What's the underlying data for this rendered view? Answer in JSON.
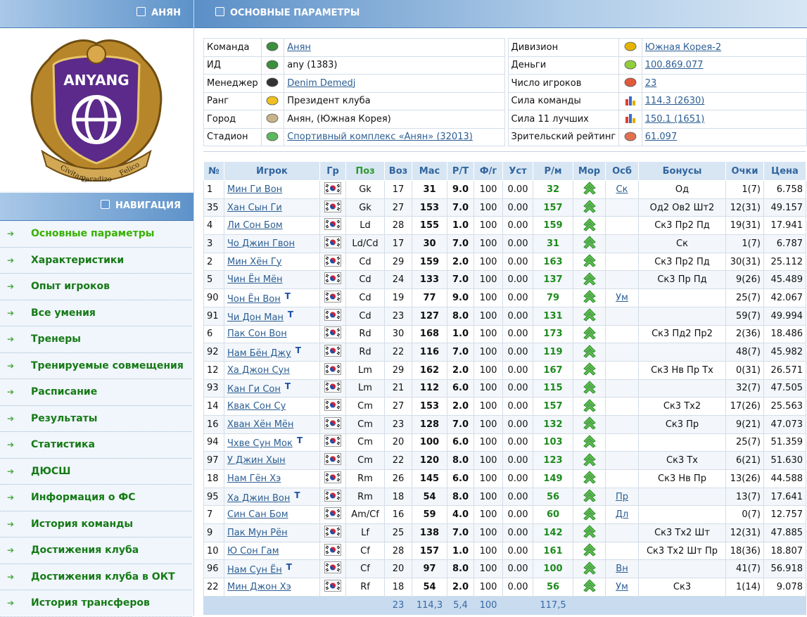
{
  "sidebar": {
    "team_title": "АНЯН",
    "logo": {
      "name": "ANYANG",
      "motto": [
        "Civitano",
        "Paradizo",
        "Felico"
      ]
    },
    "nav_title": "НАВИГАЦИЯ",
    "nav": [
      "Основные параметры",
      "Характеристики",
      "Опыт игроков",
      "Все умения",
      "Тренеры",
      "Тренируемые совмещения",
      "Расписание",
      "Результаты",
      "Статистика",
      "ДЮСШ",
      "Информация о ФС",
      "История команды",
      "Достижения клуба",
      "Достижения клуба в ОКТ",
      "История трансферов"
    ],
    "active": 0
  },
  "header": {
    "title": "ОСНОВНЫЕ ПАРАМЕТРЫ"
  },
  "info": {
    "left": [
      {
        "label": "Команда",
        "value": "Анян",
        "link": true
      },
      {
        "label": "ИД",
        "value": "any (1383)",
        "link": false
      },
      {
        "label": "Менеджер",
        "value": "Denim Demedj",
        "link": true
      },
      {
        "label": "Ранг",
        "value": "Президент клуба",
        "link": false
      },
      {
        "label": "Город",
        "value": "Анян, (Южная Корея)",
        "link": false
      },
      {
        "label": "Стадион",
        "value": "Спортивный комплекс «Анян» (32013)",
        "link": true
      }
    ],
    "right": [
      {
        "label": "Дивизион",
        "value": "Южная Корея-2",
        "link": true
      },
      {
        "label": "Деньги",
        "value": "100.869.077",
        "link": true
      },
      {
        "label": "Число игроков",
        "value": "23",
        "link": true
      },
      {
        "label": "Сила команды",
        "value": "114.3 (2630)",
        "link": true
      },
      {
        "label": "Сила 11 лучших",
        "value": "150.1 (1651)",
        "link": true
      },
      {
        "label": "Зрительский рейтинг",
        "value": "61.097",
        "link": true
      }
    ]
  },
  "players": {
    "columns": [
      "№",
      "Игрок",
      "Гр",
      "Поз",
      "Воз",
      "Мас",
      "Р/Т",
      "Ф/г",
      "Уст",
      "Р/м",
      "Мор",
      "Осб",
      "Бонусы",
      "Очки",
      "Цена"
    ],
    "rows": [
      {
        "num": "1",
        "name": "Мин Ги Вон",
        "pos": "Gk",
        "age": "17",
        "mas": "31",
        "rt": "9.0",
        "fg": "100",
        "ust": "0.00",
        "rm": "32",
        "osb": "Ск",
        "bonus": "Од",
        "pts": "1(7)",
        "price": "6.758"
      },
      {
        "num": "35",
        "name": "Хан Сын Ги",
        "pos": "Gk",
        "age": "27",
        "mas": "153",
        "rt": "7.0",
        "fg": "100",
        "ust": "0.00",
        "rm": "157",
        "bonus": "Од2 Ов2 Шт2",
        "pts": "12(31)",
        "price": "49.157"
      },
      {
        "num": "4",
        "name": "Ли Сон Бом",
        "pos": "Ld",
        "age": "28",
        "mas": "155",
        "rt": "1.0",
        "fg": "100",
        "ust": "0.00",
        "rm": "159",
        "bonus": "Ск3 Пр2 Пд",
        "pts": "19(31)",
        "price": "17.941"
      },
      {
        "num": "3",
        "name": "Чо Джин Гвон",
        "pos": "Ld/Cd",
        "age": "17",
        "mas": "30",
        "rt": "7.0",
        "fg": "100",
        "ust": "0.00",
        "rm": "31",
        "bonus": "Ск",
        "pts": "1(7)",
        "price": "6.787"
      },
      {
        "num": "2",
        "name": "Мин Хён Гу",
        "pos": "Cd",
        "age": "29",
        "mas": "159",
        "rt": "2.0",
        "fg": "100",
        "ust": "0.00",
        "rm": "163",
        "bonus": "Ск3 Пр2 Пд",
        "pts": "30(31)",
        "price": "25.112"
      },
      {
        "num": "5",
        "name": "Чин Ён Мён",
        "pos": "Cd",
        "age": "24",
        "mas": "133",
        "rt": "7.0",
        "fg": "100",
        "ust": "0.00",
        "rm": "137",
        "bonus": "Ск3 Пр Пд",
        "pts": "9(26)",
        "price": "45.489"
      },
      {
        "num": "90",
        "name": "Чон Ён Вон",
        "tag": "T",
        "pos": "Cd",
        "age": "19",
        "mas": "77",
        "rt": "9.0",
        "fg": "100",
        "ust": "0.00",
        "rm": "79",
        "osb": "Ум",
        "pts": "25(7)",
        "price": "42.067"
      },
      {
        "num": "91",
        "name": "Чи Дон Ман",
        "tag": "T",
        "pos": "Cd",
        "age": "23",
        "mas": "127",
        "rt": "8.0",
        "fg": "100",
        "ust": "0.00",
        "rm": "131",
        "pts": "59(7)",
        "price": "49.994"
      },
      {
        "num": "6",
        "name": "Пак Сон Вон",
        "pos": "Rd",
        "age": "30",
        "mas": "168",
        "rt": "1.0",
        "fg": "100",
        "ust": "0.00",
        "rm": "173",
        "bonus": "Ск3 Пд2 Пр2",
        "pts": "2(36)",
        "price": "18.486"
      },
      {
        "num": "92",
        "name": "Нам Бён Джу",
        "tag": "T",
        "pos": "Rd",
        "age": "22",
        "mas": "116",
        "rt": "7.0",
        "fg": "100",
        "ust": "0.00",
        "rm": "119",
        "pts": "48(7)",
        "price": "45.982"
      },
      {
        "num": "12",
        "name": "Ха Джон Сун",
        "pos": "Lm",
        "age": "29",
        "mas": "162",
        "rt": "2.0",
        "fg": "100",
        "ust": "0.00",
        "rm": "167",
        "bonus": "Ск3 Нв Пр Тх",
        "pts": "0(31)",
        "price": "26.571"
      },
      {
        "num": "93",
        "name": "Кан Ги Сон",
        "tag": "T",
        "pos": "Lm",
        "age": "21",
        "mas": "112",
        "rt": "6.0",
        "fg": "100",
        "ust": "0.00",
        "rm": "115",
        "pts": "32(7)",
        "price": "47.505"
      },
      {
        "num": "14",
        "name": "Квак Сон Су",
        "pos": "Cm",
        "age": "27",
        "mas": "153",
        "rt": "2.0",
        "fg": "100",
        "ust": "0.00",
        "rm": "157",
        "bonus": "Ск3 Тх2",
        "pts": "17(26)",
        "price": "25.563"
      },
      {
        "num": "16",
        "name": "Хван Хён Мён",
        "pos": "Cm",
        "age": "23",
        "mas": "128",
        "rt": "7.0",
        "fg": "100",
        "ust": "0.00",
        "rm": "132",
        "bonus": "Ск3 Пр",
        "pts": "9(21)",
        "price": "47.073"
      },
      {
        "num": "94",
        "name": "Чхве Сун Мок",
        "tag": "T",
        "pos": "Cm",
        "age": "20",
        "mas": "100",
        "rt": "6.0",
        "fg": "100",
        "ust": "0.00",
        "rm": "103",
        "pts": "25(7)",
        "price": "51.359"
      },
      {
        "num": "97",
        "name": "У Джин Хын",
        "pos": "Cm",
        "age": "22",
        "mas": "120",
        "rt": "8.0",
        "fg": "100",
        "ust": "0.00",
        "rm": "123",
        "bonus": "Ск3 Тх",
        "pts": "6(21)",
        "price": "51.630"
      },
      {
        "num": "18",
        "name": "Нам Гён Хэ",
        "pos": "Rm",
        "age": "26",
        "mas": "145",
        "rt": "6.0",
        "fg": "100",
        "ust": "0.00",
        "rm": "149",
        "bonus": "Ск3 Нв Пр",
        "pts": "13(26)",
        "price": "44.588"
      },
      {
        "num": "95",
        "name": "Ха Джин Вон",
        "tag": "T",
        "pos": "Rm",
        "age": "18",
        "mas": "54",
        "rt": "8.0",
        "fg": "100",
        "ust": "0.00",
        "rm": "56",
        "osb": "Пр",
        "pts": "13(7)",
        "price": "17.641"
      },
      {
        "num": "7",
        "name": "Син Сан Бом",
        "pos": "Am/Cf",
        "age": "16",
        "mas": "59",
        "rt": "4.0",
        "fg": "100",
        "ust": "0.00",
        "rm": "60",
        "osb": "Дл",
        "pts": "0(7)",
        "price": "12.757"
      },
      {
        "num": "9",
        "name": "Пак Мун Рён",
        "pos": "Lf",
        "age": "25",
        "mas": "138",
        "rt": "7.0",
        "fg": "100",
        "ust": "0.00",
        "rm": "142",
        "bonus": "Ск3 Тх2 Шт",
        "pts": "12(31)",
        "price": "47.885"
      },
      {
        "num": "10",
        "name": "Ю Сон Гам",
        "pos": "Cf",
        "age": "28",
        "mas": "157",
        "rt": "1.0",
        "fg": "100",
        "ust": "0.00",
        "rm": "161",
        "bonus": "Ск3 Тх2 Шт Пр",
        "pts": "18(36)",
        "price": "18.807"
      },
      {
        "num": "96",
        "name": "Нам Сун Ён",
        "tag": "T",
        "pos": "Cf",
        "age": "20",
        "mas": "97",
        "rt": "8.0",
        "fg": "100",
        "ust": "0.00",
        "rm": "100",
        "osb": "Вн",
        "pts": "41(7)",
        "price": "56.918"
      },
      {
        "num": "22",
        "name": "Мин Джон Хэ",
        "pos": "Rf",
        "age": "18",
        "mas": "54",
        "rt": "2.0",
        "fg": "100",
        "ust": "0.00",
        "rm": "56",
        "osb": "Ум",
        "bonus": "Ск3",
        "pts": "1(14)",
        "price": "9.078"
      }
    ],
    "totals": {
      "age": "23",
      "mas": "114,3",
      "rt": "5,4",
      "fg": "100",
      "rm": "117,5"
    }
  }
}
